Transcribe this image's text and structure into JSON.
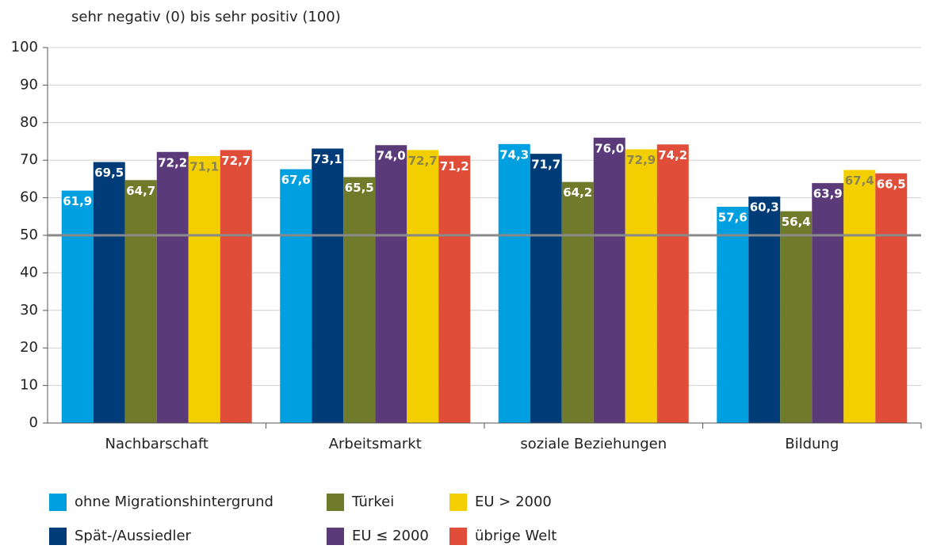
{
  "chart_data": {
    "type": "bar",
    "y_axis_label": "sehr negativ (0) bis sehr positiv (100)",
    "categories": [
      "Nachbarschaft",
      "Arbeitsmarkt",
      "soziale Beziehungen",
      "Bildung"
    ],
    "series": [
      {
        "name": "ohne Migrationshintergrund",
        "color": "#009fdf",
        "label_color": "#ffffff",
        "values": [
          61.9,
          67.6,
          74.3,
          57.6
        ],
        "value_labels": [
          "61,9",
          "67,6",
          "74,3",
          "57,6"
        ]
      },
      {
        "name": "Spät-/Aussiedler",
        "color": "#003c78",
        "label_color": "#ffffff",
        "values": [
          69.5,
          73.1,
          71.7,
          60.3
        ],
        "value_labels": [
          "69,5",
          "73,1",
          "71,7",
          "60,3"
        ]
      },
      {
        "name": "Türkei",
        "color": "#6f7a2a",
        "label_color": "#ffffff",
        "values": [
          64.7,
          65.5,
          64.2,
          56.4
        ],
        "value_labels": [
          "64,7",
          "65,5",
          "64,2",
          "56,4"
        ]
      },
      {
        "name": "EU ≤ 2000",
        "color": "#5b3a7a",
        "label_color": "#ffffff",
        "values": [
          72.2,
          74.0,
          76.0,
          63.9
        ],
        "value_labels": [
          "72,2",
          "74,0",
          "76,0",
          "63,9"
        ]
      },
      {
        "name": "EU > 2000",
        "color": "#f3cf00",
        "label_color": "#8c8450",
        "values": [
          71.1,
          72.7,
          72.9,
          67.4
        ],
        "value_labels": [
          "71,1",
          "72,7",
          "72,9",
          "67,4"
        ]
      },
      {
        "name": "übrige Welt",
        "color": "#e04e39",
        "label_color": "#ffffff",
        "values": [
          72.7,
          71.2,
          74.2,
          66.5
        ],
        "value_labels": [
          "72,7",
          "71,2",
          "74,2",
          "66,5"
        ]
      }
    ],
    "ylim": [
      0,
      100
    ],
    "yticks": [
      0,
      10,
      20,
      30,
      40,
      50,
      60,
      70,
      80,
      90,
      100
    ],
    "grid": true,
    "reference_line": 50
  }
}
